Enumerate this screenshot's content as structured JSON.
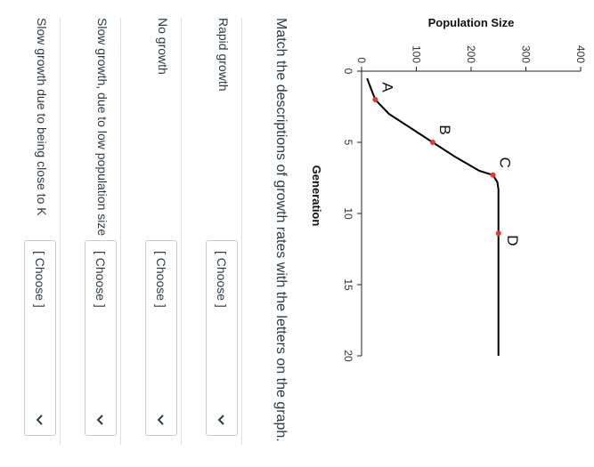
{
  "chart_data": {
    "type": "line",
    "ylabel": "Population Size",
    "xlabel": "Generation",
    "xlim": [
      0,
      20
    ],
    "ylim": [
      0,
      400
    ],
    "xticks": [
      0,
      5,
      10,
      15,
      20
    ],
    "yticks": [
      0,
      100,
      200,
      300,
      400
    ],
    "series": [
      {
        "x": [
          0.5,
          1,
          2,
          3,
          4,
          5,
          6,
          7,
          7.3,
          7.8,
          8.3,
          10,
          12,
          14,
          16,
          18,
          20
        ],
        "y": [
          10,
          15,
          25,
          50,
          90,
          130,
          170,
          215,
          240,
          248,
          250,
          250,
          250,
          250,
          250,
          250,
          250
        ]
      }
    ],
    "points": [
      {
        "label": "A",
        "x": 2,
        "y": 25
      },
      {
        "label": "B",
        "x": 5,
        "y": 130
      },
      {
        "label": "C",
        "x": 7.3,
        "y": 240
      },
      {
        "label": "D",
        "x": 11.4,
        "y": 250
      }
    ],
    "colors": {
      "line": "#000000",
      "point": "#e8372c"
    }
  },
  "question": "Match the descriptions of growth rates with the letters on the graph.",
  "matches": [
    {
      "label": "Rapid growth",
      "selected": "[ Choose ]"
    },
    {
      "label": "No growth",
      "selected": "[ Choose ]"
    },
    {
      "label": "Slow growth, due to low population size",
      "selected": "[ Choose ]"
    },
    {
      "label": "Slow growth due to being close to K",
      "selected": "[ Choose ]"
    }
  ],
  "icons": {
    "dropdown": "chevron-down-icon"
  }
}
